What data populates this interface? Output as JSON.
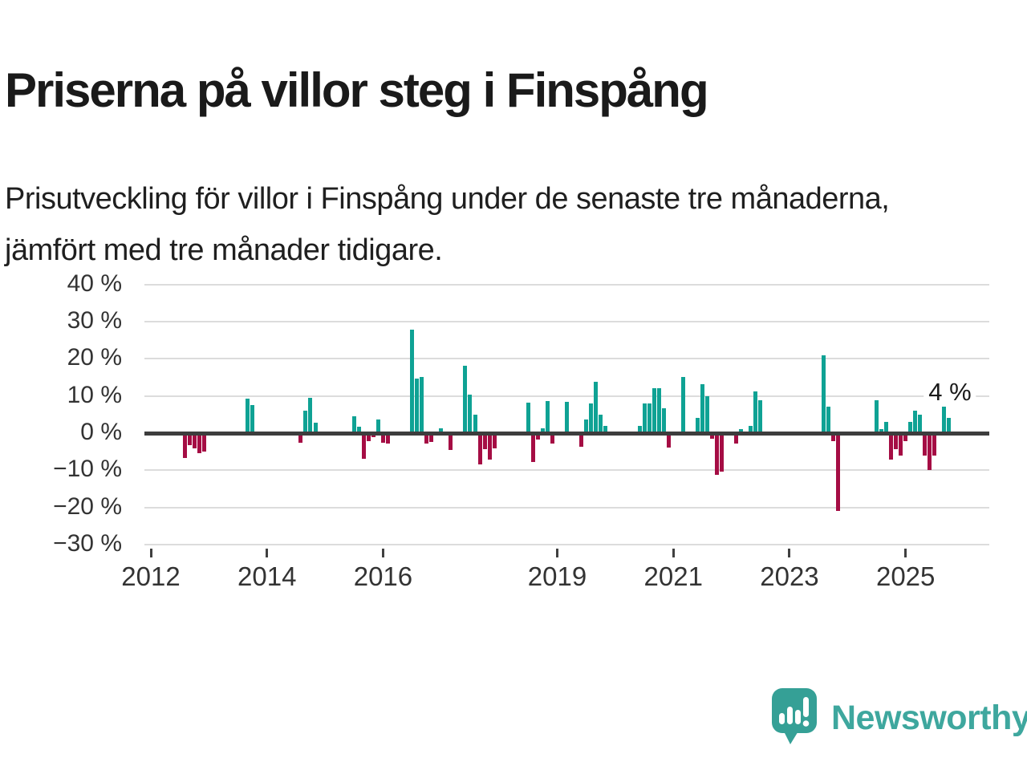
{
  "header": {
    "title": "Priserna på villor steg i Finspång",
    "subtitle": "Prisutveckling för villor i Finspång under de senaste tre månaderna, jämfört med tre månader tidigare."
  },
  "branding": {
    "name": "Newsworthy",
    "icon": "bar-chart-speech-bubble-icon",
    "color": "#3EA79E"
  },
  "colors": {
    "positive_bar": "#0FA294",
    "negative_bar": "#A50D44",
    "zero_line": "#3d3d3d",
    "gridline": "#dcdcdc",
    "axis_text": "#333333"
  },
  "chart_data": {
    "type": "bar",
    "title": "Prisutveckling för villor i Finspång",
    "unit": "%",
    "ylim": [
      -30,
      40
    ],
    "grid": true,
    "annotation": {
      "label": "4 %",
      "target_date": "2025-10"
    },
    "yticks": [
      {
        "value": 40,
        "label": "40 %"
      },
      {
        "value": 30,
        "label": "30 %"
      },
      {
        "value": 20,
        "label": "20 %"
      },
      {
        "value": 10,
        "label": "10 %"
      },
      {
        "value": 0,
        "label": "0 %"
      },
      {
        "value": -10,
        "label": "−10 %"
      },
      {
        "value": -20,
        "label": "−20 %"
      },
      {
        "value": -30,
        "label": "−30 %"
      }
    ],
    "xticks": [
      {
        "year": 2012,
        "label": "2012"
      },
      {
        "year": 2014,
        "label": "2014"
      },
      {
        "year": 2016,
        "label": "2016"
      },
      {
        "year": 2019,
        "label": "2019"
      },
      {
        "year": 2021,
        "label": "2021"
      },
      {
        "year": 2023,
        "label": "2023"
      },
      {
        "year": 2025,
        "label": "2025"
      }
    ],
    "series": [
      {
        "date": "2012-08",
        "value": -6.8
      },
      {
        "date": "2012-09",
        "value": -3.2
      },
      {
        "date": "2012-10",
        "value": -4.2
      },
      {
        "date": "2012-11",
        "value": -5.5
      },
      {
        "date": "2012-12",
        "value": -4.9
      },
      {
        "date": "2013-09",
        "value": 9.3
      },
      {
        "date": "2013-10",
        "value": 7.6
      },
      {
        "date": "2014-08",
        "value": -2.5
      },
      {
        "date": "2014-09",
        "value": 6.1
      },
      {
        "date": "2014-10",
        "value": 9.5
      },
      {
        "date": "2014-11",
        "value": 2.8
      },
      {
        "date": "2015-07",
        "value": 4.5
      },
      {
        "date": "2015-08",
        "value": 1.8
      },
      {
        "date": "2015-09",
        "value": -6.9
      },
      {
        "date": "2015-10",
        "value": -2.2
      },
      {
        "date": "2015-11",
        "value": -1.1
      },
      {
        "date": "2015-12",
        "value": 3.6
      },
      {
        "date": "2016-01",
        "value": -2.5
      },
      {
        "date": "2016-02",
        "value": -2.8
      },
      {
        "date": "2016-07",
        "value": 27.9
      },
      {
        "date": "2016-08",
        "value": 14.6
      },
      {
        "date": "2016-09",
        "value": 15.2
      },
      {
        "date": "2016-10",
        "value": -2.9
      },
      {
        "date": "2016-11",
        "value": -2.4
      },
      {
        "date": "2017-01",
        "value": 1.4
      },
      {
        "date": "2017-03",
        "value": -4.5
      },
      {
        "date": "2017-06",
        "value": 18.2
      },
      {
        "date": "2017-07",
        "value": 10.4
      },
      {
        "date": "2017-08",
        "value": 5.0
      },
      {
        "date": "2017-09",
        "value": -8.5
      },
      {
        "date": "2017-10",
        "value": -4.3
      },
      {
        "date": "2017-11",
        "value": -7.2
      },
      {
        "date": "2017-12",
        "value": -4.1
      },
      {
        "date": "2018-07",
        "value": 8.3
      },
      {
        "date": "2018-08",
        "value": -7.8
      },
      {
        "date": "2018-09",
        "value": -1.8
      },
      {
        "date": "2018-10",
        "value": 1.2
      },
      {
        "date": "2018-11",
        "value": 8.6
      },
      {
        "date": "2018-12",
        "value": -2.9
      },
      {
        "date": "2019-03",
        "value": 8.5
      },
      {
        "date": "2019-06",
        "value": -3.6
      },
      {
        "date": "2019-07",
        "value": 3.6
      },
      {
        "date": "2019-08",
        "value": 8.1
      },
      {
        "date": "2019-09",
        "value": 13.9
      },
      {
        "date": "2019-10",
        "value": 4.9
      },
      {
        "date": "2019-11",
        "value": 2.0
      },
      {
        "date": "2020-06",
        "value": 2.0
      },
      {
        "date": "2020-07",
        "value": 8.0
      },
      {
        "date": "2020-08",
        "value": 7.9
      },
      {
        "date": "2020-09",
        "value": 12.0
      },
      {
        "date": "2020-10",
        "value": 12.0
      },
      {
        "date": "2020-11",
        "value": 6.8
      },
      {
        "date": "2020-12",
        "value": -3.8
      },
      {
        "date": "2021-03",
        "value": 15.1
      },
      {
        "date": "2021-06",
        "value": 4.1
      },
      {
        "date": "2021-07",
        "value": 13.1
      },
      {
        "date": "2021-08",
        "value": 9.9
      },
      {
        "date": "2021-09",
        "value": -1.6
      },
      {
        "date": "2021-10",
        "value": -11.2
      },
      {
        "date": "2021-11",
        "value": -10.4
      },
      {
        "date": "2022-02",
        "value": -2.9
      },
      {
        "date": "2022-03",
        "value": 1.1
      },
      {
        "date": "2022-05",
        "value": 1.9
      },
      {
        "date": "2022-06",
        "value": 11.2
      },
      {
        "date": "2022-07",
        "value": 8.9
      },
      {
        "date": "2023-08",
        "value": 21.0
      },
      {
        "date": "2023-09",
        "value": 7.1
      },
      {
        "date": "2023-10",
        "value": -2.2
      },
      {
        "date": "2023-11",
        "value": -20.9
      },
      {
        "date": "2024-07",
        "value": 8.9
      },
      {
        "date": "2024-08",
        "value": 1.1
      },
      {
        "date": "2024-09",
        "value": 3.0
      },
      {
        "date": "2024-10",
        "value": -7.1
      },
      {
        "date": "2024-11",
        "value": -4.3
      },
      {
        "date": "2024-12",
        "value": -6.1
      },
      {
        "date": "2025-01",
        "value": -2.2
      },
      {
        "date": "2025-02",
        "value": 3.0
      },
      {
        "date": "2025-03",
        "value": 6.1
      },
      {
        "date": "2025-04",
        "value": 5.0
      },
      {
        "date": "2025-05",
        "value": -6.1
      },
      {
        "date": "2025-06",
        "value": -9.9
      },
      {
        "date": "2025-07",
        "value": -6.1
      },
      {
        "date": "2025-09",
        "value": 8.3
      },
      {
        "date": "2025-10",
        "value": 4.0
      }
    ]
  }
}
